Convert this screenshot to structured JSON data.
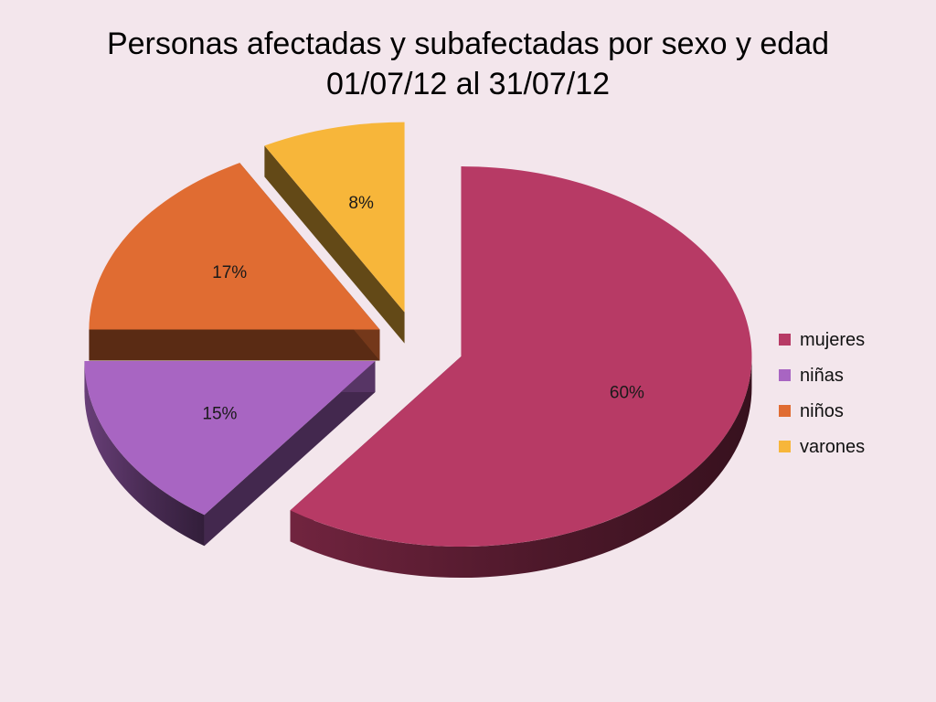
{
  "title_line1": "Personas afectadas y subafectadas por sexo y edad",
  "title_line2": "01/07/12 al 31/07/12",
  "chart_data": {
    "type": "pie",
    "style": "3D exploded",
    "legend_position": "right",
    "categories": [
      "mujeres",
      "niñas",
      "niños",
      "varones"
    ],
    "values": [
      60,
      15,
      17,
      8
    ],
    "data_labels": [
      "60%",
      "15%",
      "17%",
      "8%"
    ],
    "colors": [
      "#b73a65",
      "#a865c2",
      "#e06c32",
      "#f7b63a"
    ]
  }
}
